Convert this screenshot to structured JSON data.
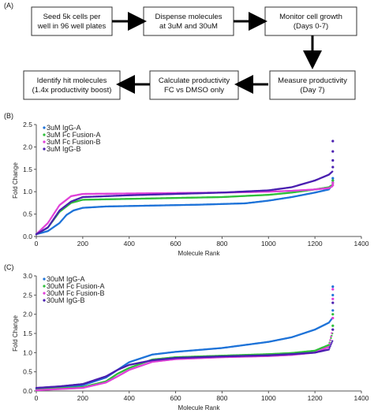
{
  "panels": {
    "a": "(A)",
    "b": "(B)",
    "c": "(C)"
  },
  "workflow": {
    "row1": [
      {
        "id": "seed",
        "lines": [
          "Seed 5k cells per",
          "well in 96 well plates"
        ]
      },
      {
        "id": "dispense",
        "lines": [
          "Dispense molecules",
          "at 3uM and 30uM"
        ]
      },
      {
        "id": "monitor",
        "lines": [
          "Monitor cell growth",
          "(Days 0-7)"
        ]
      }
    ],
    "row2": [
      {
        "id": "identify",
        "lines": [
          "Identify hit molecules",
          "(1.4x productivity boost)"
        ]
      },
      {
        "id": "calculate",
        "lines": [
          "Calculate productivity",
          "FC vs DMSO only"
        ]
      },
      {
        "id": "measure",
        "lines": [
          "Measure productivity",
          "(Day 7)"
        ]
      }
    ]
  },
  "chart_data": [
    {
      "type": "scatter",
      "xlabel": "Molecule Rank",
      "ylabel": "Fold Change",
      "xlim": [
        0,
        1400
      ],
      "ylim": [
        0,
        2.5
      ],
      "xticks": [
        0,
        200,
        400,
        600,
        800,
        1000,
        1200,
        1400
      ],
      "yticks": [
        0,
        0.5,
        1.0,
        1.5,
        2.0,
        2.5
      ],
      "ytick_labels": [
        "0.0",
        "0.5",
        "1.0",
        "1.5",
        "2.0",
        "2.5"
      ],
      "legend_position": "top-left",
      "series": [
        {
          "name": "3uM IgG-A",
          "color": "#1e73d8",
          "points": [
            [
              0,
              0.05
            ],
            [
              50,
              0.12
            ],
            [
              100,
              0.3
            ],
            [
              130,
              0.48
            ],
            [
              160,
              0.58
            ],
            [
              200,
              0.64
            ],
            [
              300,
              0.67
            ],
            [
              500,
              0.69
            ],
            [
              700,
              0.71
            ],
            [
              900,
              0.74
            ],
            [
              1000,
              0.8
            ],
            [
              1100,
              0.88
            ],
            [
              1200,
              0.98
            ],
            [
              1260,
              1.05
            ],
            [
              1275,
              1.15
            ]
          ],
          "outliers": [
            1.25,
            1.3
          ]
        },
        {
          "name": "3uM Fc Fusion-A",
          "color": "#2fbf3a",
          "points": [
            [
              0,
              0.05
            ],
            [
              50,
              0.2
            ],
            [
              100,
              0.55
            ],
            [
              150,
              0.75
            ],
            [
              200,
              0.82
            ],
            [
              400,
              0.84
            ],
            [
              600,
              0.86
            ],
            [
              800,
              0.88
            ],
            [
              1000,
              0.93
            ],
            [
              1100,
              0.98
            ],
            [
              1200,
              1.05
            ],
            [
              1260,
              1.1
            ],
            [
              1275,
              1.15
            ]
          ],
          "outliers": [
            1.2,
            1.25
          ]
        },
        {
          "name": "3uM Fc Fusion-B",
          "color": "#e040d8",
          "points": [
            [
              0,
              0.05
            ],
            [
              50,
              0.3
            ],
            [
              100,
              0.7
            ],
            [
              150,
              0.9
            ],
            [
              200,
              0.95
            ],
            [
              400,
              0.96
            ],
            [
              600,
              0.97
            ],
            [
              800,
              0.98
            ],
            [
              1000,
              1.0
            ],
            [
              1100,
              1.02
            ],
            [
              1200,
              1.05
            ],
            [
              1260,
              1.08
            ],
            [
              1275,
              1.12
            ]
          ],
          "outliers": [
            1.15,
            1.2
          ]
        },
        {
          "name": "3uM IgG-B",
          "color": "#4a1fb0",
          "points": [
            [
              0,
              0.05
            ],
            [
              50,
              0.2
            ],
            [
              100,
              0.58
            ],
            [
              150,
              0.78
            ],
            [
              200,
              0.88
            ],
            [
              400,
              0.92
            ],
            [
              600,
              0.95
            ],
            [
              800,
              0.98
            ],
            [
              1000,
              1.03
            ],
            [
              1100,
              1.1
            ],
            [
              1200,
              1.25
            ],
            [
              1260,
              1.38
            ],
            [
              1275,
              1.45
            ]
          ],
          "outliers": [
            1.55,
            1.7,
            1.9,
            2.13
          ]
        }
      ]
    },
    {
      "type": "scatter",
      "xlabel": "Molecule Rank",
      "ylabel": "Fold Change",
      "xlim": [
        0,
        1400
      ],
      "ylim": [
        0,
        3.0
      ],
      "xticks": [
        0,
        200,
        400,
        600,
        800,
        1000,
        1200,
        1400
      ],
      "yticks": [
        0,
        0.5,
        1.0,
        1.5,
        2.0,
        2.5,
        3.0
      ],
      "ytick_labels": [
        "0.0",
        "0.5",
        "1.0",
        "1.5",
        "2.0",
        "2.5",
        "3.0"
      ],
      "legend_position": "top-left",
      "series": [
        {
          "name": "30uM IgG-A",
          "color": "#1e73d8",
          "points": [
            [
              0,
              0.05
            ],
            [
              100,
              0.1
            ],
            [
              200,
              0.15
            ],
            [
              300,
              0.35
            ],
            [
              350,
              0.55
            ],
            [
              400,
              0.75
            ],
            [
              500,
              0.95
            ],
            [
              600,
              1.02
            ],
            [
              800,
              1.12
            ],
            [
              1000,
              1.28
            ],
            [
              1100,
              1.4
            ],
            [
              1200,
              1.6
            ],
            [
              1260,
              1.78
            ],
            [
              1275,
              1.9
            ]
          ],
          "outliers": [
            2.1,
            2.5,
            2.72
          ]
        },
        {
          "name": "30uM Fc Fusion-A",
          "color": "#2fbf3a",
          "points": [
            [
              0,
              0.03
            ],
            [
              100,
              0.07
            ],
            [
              200,
              0.1
            ],
            [
              300,
              0.25
            ],
            [
              350,
              0.45
            ],
            [
              400,
              0.6
            ],
            [
              500,
              0.82
            ],
            [
              600,
              0.88
            ],
            [
              800,
              0.92
            ],
            [
              1000,
              0.96
            ],
            [
              1100,
              0.99
            ],
            [
              1200,
              1.05
            ],
            [
              1260,
              1.2
            ],
            [
              1275,
              1.5
            ]
          ],
          "outliers": [
            1.7,
            2.0
          ]
        },
        {
          "name": "30uM Fc Fusion-B",
          "color": "#e040d8",
          "points": [
            [
              0,
              0.02
            ],
            [
              100,
              0.05
            ],
            [
              200,
              0.08
            ],
            [
              300,
              0.22
            ],
            [
              350,
              0.38
            ],
            [
              400,
              0.55
            ],
            [
              500,
              0.76
            ],
            [
              600,
              0.83
            ],
            [
              800,
              0.88
            ],
            [
              1000,
              0.91
            ],
            [
              1100,
              0.94
            ],
            [
              1200,
              1.0
            ],
            [
              1260,
              1.15
            ],
            [
              1275,
              1.6
            ]
          ],
          "outliers": [
            1.9,
            2.4,
            2.65
          ]
        },
        {
          "name": "30uM IgG-B",
          "color": "#4a1fb0",
          "points": [
            [
              0,
              0.08
            ],
            [
              100,
              0.12
            ],
            [
              200,
              0.18
            ],
            [
              300,
              0.38
            ],
            [
              350,
              0.55
            ],
            [
              400,
              0.68
            ],
            [
              500,
              0.8
            ],
            [
              600,
              0.86
            ],
            [
              800,
              0.9
            ],
            [
              1000,
              0.93
            ],
            [
              1100,
              0.96
            ],
            [
              1200,
              1.0
            ],
            [
              1260,
              1.08
            ],
            [
              1275,
              1.3
            ]
          ],
          "outliers": [
            1.6,
            2.3
          ]
        }
      ]
    }
  ]
}
